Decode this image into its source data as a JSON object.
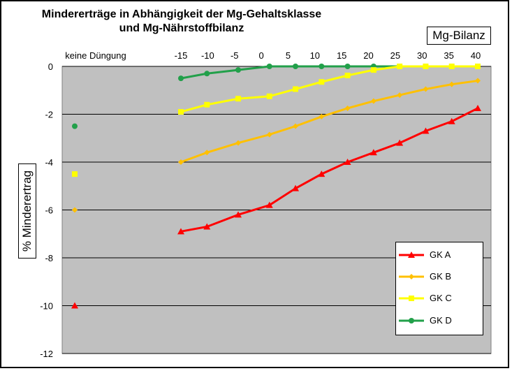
{
  "chart_data": {
    "type": "line",
    "title_line1": "Mindererträge in Abhängigkeit der Mg-Gehaltsklasse",
    "title_line2": "und Mg-Nährstoffbilanz",
    "xlabel": "Mg-Bilanz",
    "ylabel": "% Minderertrag",
    "no_fertilization_label": "keine Düngung",
    "x_ticks": [
      -15,
      -10,
      -5,
      0,
      5,
      10,
      15,
      20,
      25,
      30,
      35,
      40
    ],
    "y_ticks": [
      0,
      -2,
      -4,
      -6,
      -8,
      -10,
      -12
    ],
    "xlim": [
      -15,
      40
    ],
    "ylim": [
      -12,
      0
    ],
    "grid": "horizontal",
    "legend_position": "bottom-right",
    "x": [
      -15,
      -10,
      -4,
      2,
      7,
      12,
      17,
      22,
      27,
      32,
      37,
      42
    ],
    "series": [
      {
        "name": "GK A",
        "color": "#ff0000",
        "marker": "triangle",
        "no_fertilization": -10,
        "values": [
          -6.9,
          -6.7,
          -6.2,
          -5.8,
          -5.1,
          -4.5,
          -4.0,
          -3.6,
          -3.2,
          -2.7,
          -2.3,
          -1.75
        ]
      },
      {
        "name": "GK B",
        "color": "#ffc000",
        "marker": "diamond",
        "no_fertilization": -6,
        "values": [
          -4.0,
          -3.6,
          -3.2,
          -2.85,
          -2.5,
          -2.1,
          -1.75,
          -1.45,
          -1.2,
          -0.95,
          -0.75,
          -0.6
        ]
      },
      {
        "name": "GK C",
        "color": "#ffff00",
        "marker": "square",
        "no_fertilization": -4.5,
        "values": [
          -1.9,
          -1.6,
          -1.35,
          -1.25,
          -0.95,
          -0.65,
          -0.38,
          -0.15,
          0,
          0,
          0,
          0
        ]
      },
      {
        "name": "GK D",
        "color": "#22a04a",
        "marker": "circle",
        "no_fertilization": -2.5,
        "values": [
          -0.5,
          -0.3,
          -0.15,
          0,
          0,
          0,
          0,
          0,
          0,
          0,
          0,
          0
        ]
      }
    ]
  }
}
